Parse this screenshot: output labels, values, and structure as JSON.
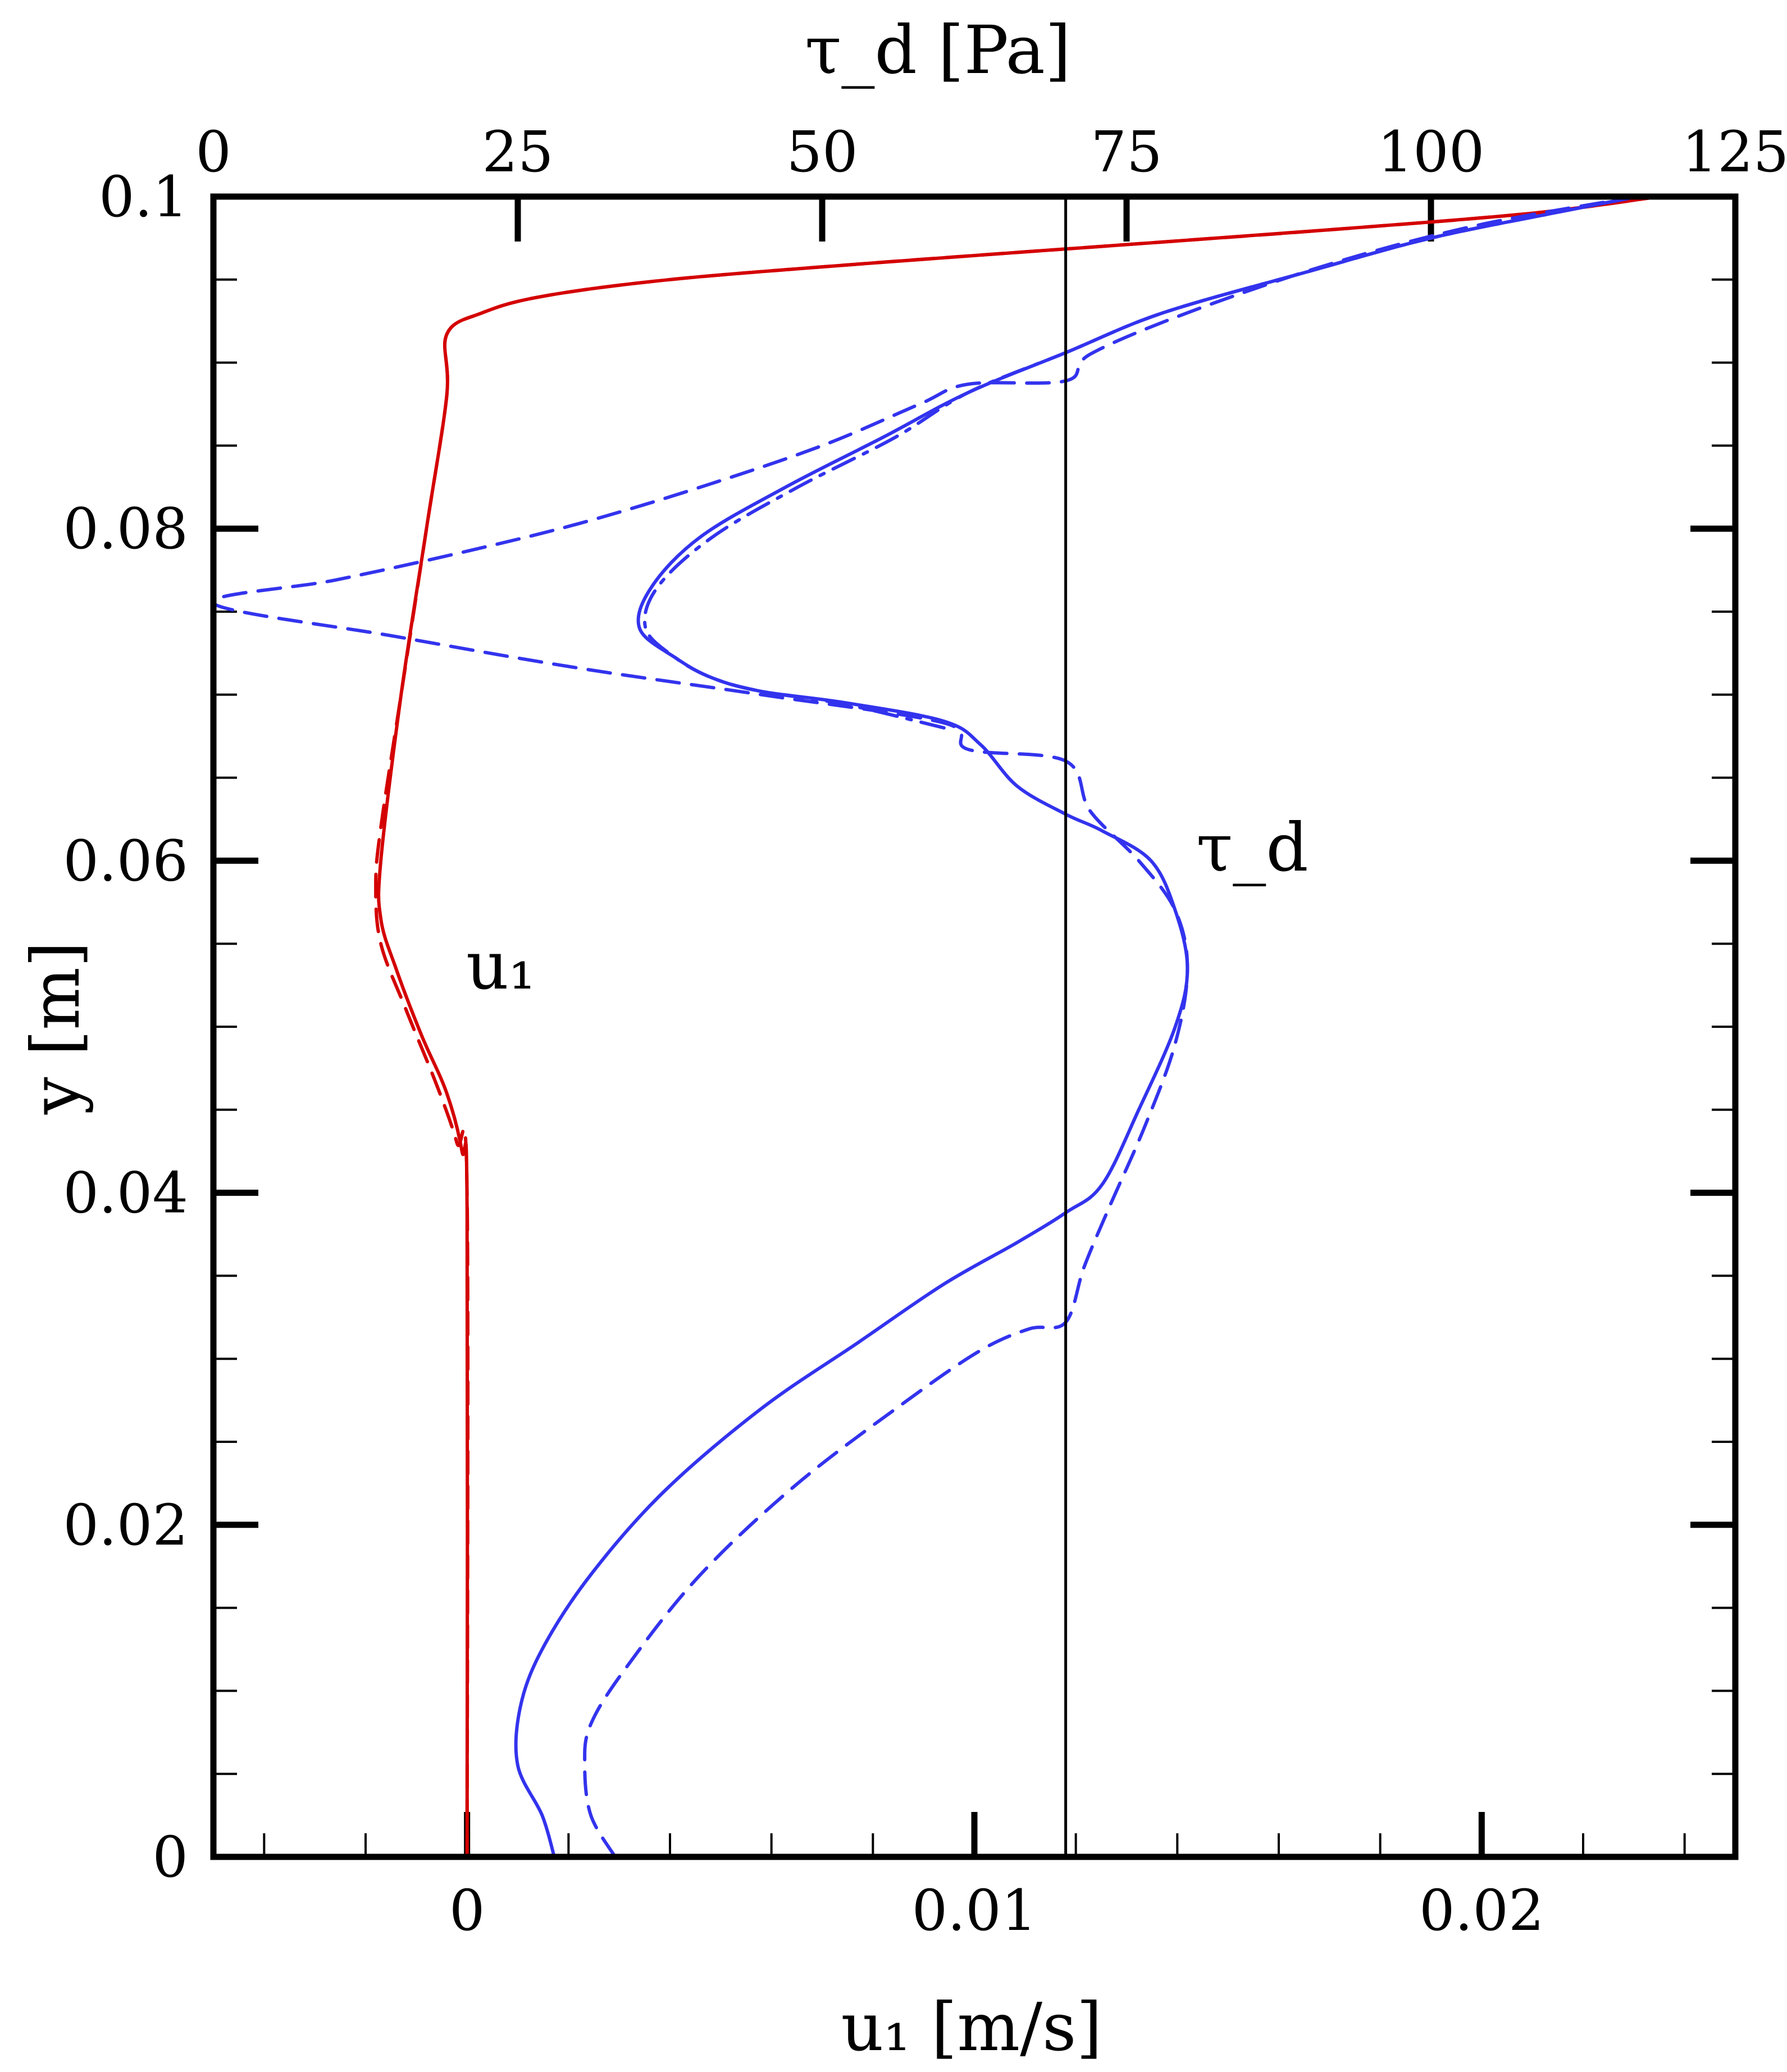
{
  "chart_data": {
    "type": "line",
    "title": "",
    "xlabel_bottom": "u₁ [m/s]",
    "xlabel_top": "τ_d [Pa]",
    "ylabel": "y [m]",
    "x_bottom_range": [
      -0.005,
      0.025
    ],
    "x_bottom_ticks": [
      {
        "value": 0,
        "label": "0"
      },
      {
        "value": 0.01,
        "label": "0.01"
      },
      {
        "value": 0.02,
        "label": "0.02"
      }
    ],
    "x_top_range": [
      0,
      125
    ],
    "x_top_ticks": [
      {
        "value": 0,
        "label": "0"
      },
      {
        "value": 25,
        "label": "25"
      },
      {
        "value": 50,
        "label": "50"
      },
      {
        "value": 75,
        "label": "75"
      },
      {
        "value": 100,
        "label": "100"
      },
      {
        "value": 125,
        "label": "125"
      }
    ],
    "y_range": [
      0,
      0.1
    ],
    "y_ticks": [
      {
        "value": 0,
        "label": "0"
      },
      {
        "value": 0.02,
        "label": "0.02"
      },
      {
        "value": 0.04,
        "label": "0.04"
      },
      {
        "value": 0.06,
        "label": "0.06"
      },
      {
        "value": 0.08,
        "label": "0.08"
      },
      {
        "value": 0.1,
        "label": "0.1"
      }
    ],
    "grid": false,
    "reference_line": {
      "axis": "top",
      "value": 70
    },
    "labels": {
      "u1": "u₁",
      "tau_d": "τ_d"
    },
    "colors": {
      "u1": "#d40000",
      "tau_d": "#3333ee",
      "reference": "#000000"
    },
    "series": [
      {
        "key": "u1-solid",
        "axis": "bottom",
        "style": "solid",
        "color": "#d40000",
        "points": [
          [
            0,
            0
          ],
          [
            0,
            0.039
          ],
          [
            -0.0001,
            0.0425
          ],
          [
            -0.0004,
            0.046
          ],
          [
            -0.0009,
            0.0495
          ],
          [
            -0.0014,
            0.0535
          ],
          [
            -0.0017,
            0.0565
          ],
          [
            -0.0017,
            0.06
          ],
          [
            -0.0013,
            0.07
          ],
          [
            -0.0008,
            0.08
          ],
          [
            -0.0004,
            0.088
          ],
          [
            -0.0004,
            0.0917
          ],
          [
            0.0003,
            0.093
          ],
          [
            0.0015,
            0.094
          ],
          [
            0.004,
            0.095
          ],
          [
            0.008,
            0.096
          ],
          [
            0.0125,
            0.097
          ],
          [
            0.017,
            0.098
          ],
          [
            0.021,
            0.099
          ],
          [
            0.0235,
            0.1
          ]
        ]
      },
      {
        "key": "u1-dashed",
        "axis": "bottom",
        "style": "dashed",
        "color": "#d40000",
        "points": [
          [
            0,
            0
          ],
          [
            0,
            0.04
          ],
          [
            -0.0002,
            0.043
          ],
          [
            -0.0006,
            0.0465
          ],
          [
            -0.0012,
            0.051
          ],
          [
            -0.0017,
            0.055
          ],
          [
            -0.0018,
            0.0585
          ],
          [
            -0.0017,
            0.062
          ],
          [
            -0.0013,
            0.07
          ],
          [
            -0.0008,
            0.08
          ],
          [
            -0.0004,
            0.088
          ],
          [
            -0.0004,
            0.0917
          ],
          [
            0.0003,
            0.093
          ],
          [
            0.0015,
            0.094
          ],
          [
            0.004,
            0.095
          ],
          [
            0.008,
            0.096
          ],
          [
            0.0125,
            0.097
          ],
          [
            0.017,
            0.098
          ],
          [
            0.021,
            0.099
          ],
          [
            0.0235,
            0.1
          ]
        ]
      },
      {
        "key": "tau-solid",
        "axis": "top",
        "style": "solid",
        "color": "#3333ee",
        "points": [
          [
            28,
            0
          ],
          [
            27,
            0.0025
          ],
          [
            25,
            0.0055
          ],
          [
            25.2,
            0.009
          ],
          [
            27,
            0.0125
          ],
          [
            31,
            0.017
          ],
          [
            37,
            0.022
          ],
          [
            45,
            0.027
          ],
          [
            53,
            0.031
          ],
          [
            60,
            0.0345
          ],
          [
            66,
            0.037
          ],
          [
            70,
            0.0388
          ],
          [
            73,
            0.0405
          ],
          [
            76,
            0.045
          ],
          [
            79,
            0.05
          ],
          [
            80,
            0.0535
          ],
          [
            79,
            0.057
          ],
          [
            77,
            0.06
          ],
          [
            73,
            0.0618
          ],
          [
            70,
            0.0628
          ],
          [
            66,
            0.0645
          ],
          [
            63,
            0.067
          ],
          [
            60,
            0.0684
          ],
          [
            52,
            0.0695
          ],
          [
            45,
            0.0702
          ],
          [
            41,
            0.071
          ],
          [
            38,
            0.0722
          ],
          [
            35,
            0.074
          ],
          [
            36,
            0.0765
          ],
          [
            40,
            0.0795
          ],
          [
            47,
            0.0825
          ],
          [
            55,
            0.0855
          ],
          [
            62,
            0.0882
          ],
          [
            70,
            0.0906
          ],
          [
            78,
            0.093
          ],
          [
            90,
            0.0955
          ],
          [
            100,
            0.0975
          ],
          [
            110,
            0.099
          ],
          [
            117,
            0.1
          ]
        ]
      },
      {
        "key": "tau-dashed",
        "axis": "top",
        "style": "dashed",
        "color": "#3333ee",
        "points": [
          [
            33,
            0
          ],
          [
            31,
            0.0025
          ],
          [
            30.5,
            0.0055
          ],
          [
            31,
            0.008
          ],
          [
            34,
            0.0115
          ],
          [
            40,
            0.017
          ],
          [
            48,
            0.0225
          ],
          [
            57,
            0.0275
          ],
          [
            63,
            0.0305
          ],
          [
            67,
            0.0318
          ],
          [
            70,
            0.0322
          ],
          [
            71.5,
            0.0355
          ],
          [
            73.5,
            0.039
          ],
          [
            76.5,
            0.044
          ],
          [
            79,
            0.049
          ],
          [
            80,
            0.0535
          ],
          [
            79,
            0.057
          ],
          [
            76,
            0.06
          ],
          [
            72,
            0.063
          ],
          [
            70,
            0.066
          ],
          [
            62,
            0.0667
          ],
          [
            60,
            0.0683
          ],
          [
            45,
            0.07
          ],
          [
            30,
            0.0716
          ],
          [
            15,
            0.0735
          ],
          [
            0,
            0.0755
          ],
          [
            10,
            0.0769
          ],
          [
            20,
            0.0785
          ],
          [
            30,
            0.0803
          ],
          [
            40,
            0.0825
          ],
          [
            50,
            0.085
          ],
          [
            58,
            0.0875
          ],
          [
            62,
            0.0887
          ],
          [
            70,
            0.0889
          ],
          [
            72,
            0.0905
          ],
          [
            80,
            0.093
          ],
          [
            92,
            0.096
          ],
          [
            104,
            0.0983
          ],
          [
            117,
            0.1
          ]
        ]
      },
      {
        "key": "tau-dashdot",
        "axis": "top",
        "style": "dashdot",
        "color": "#3333ee",
        "points": [
          [
            60,
            0.068
          ],
          [
            52,
            0.0694
          ],
          [
            45,
            0.0702
          ],
          [
            41,
            0.071
          ],
          [
            38,
            0.0722
          ],
          [
            35.5,
            0.074
          ],
          [
            36.5,
            0.0765
          ],
          [
            41,
            0.0795
          ],
          [
            48,
            0.0825
          ],
          [
            56,
            0.0855
          ],
          [
            62,
            0.0882
          ],
          [
            70,
            0.0906
          ],
          [
            78,
            0.093
          ],
          [
            90,
            0.0955
          ],
          [
            100,
            0.0975
          ],
          [
            110,
            0.099
          ],
          [
            117,
            0.1
          ]
        ]
      }
    ]
  }
}
